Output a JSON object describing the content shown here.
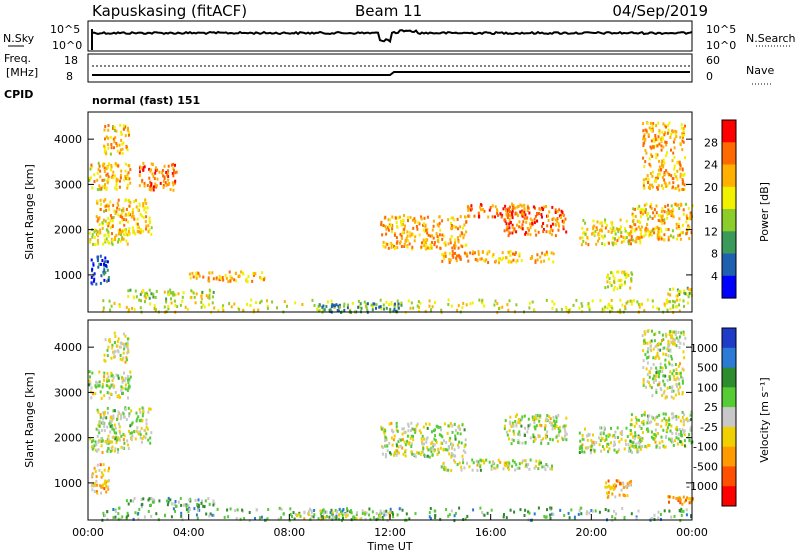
{
  "header": {
    "station": "Kapuskasing (fitACF)",
    "beam": "Beam 11",
    "date": "04/Sep/2019"
  },
  "noise_panel": {
    "left_label": "N.Sky",
    "right_label": "N.Search",
    "left_ticks": [
      "10^5",
      "10^0"
    ],
    "right_ticks": [
      "10^5",
      "10^0"
    ]
  },
  "freq_panel": {
    "left_label_1": "Freq.",
    "left_label_2": "[MHz]",
    "cpid_label": "CPID",
    "right_label": "Nave",
    "left_ticks": [
      "18",
      "8"
    ],
    "right_ticks": [
      "60",
      "0"
    ]
  },
  "mode_text": "normal (fast) 151",
  "chart_data": [
    {
      "type": "heatmap",
      "parameter": "Power",
      "ylabel": "Slant Range [km]",
      "yticks": [
        1000,
        2000,
        3000,
        4000
      ],
      "ylim": [
        180,
        4600
      ],
      "xlim_hours": [
        0,
        24
      ],
      "colorbar_label": "Power [dB]",
      "colorbar_ticks": [
        "28",
        "24",
        "20",
        "16",
        "12",
        "8",
        "4"
      ],
      "colorscale": [
        "#ff0000",
        "#ff6a00",
        "#ffb000",
        "#f2f200",
        "#8ccd2a",
        "#3a9a5a",
        "#2060b0",
        "#0000ff"
      ],
      "patches": [
        {
          "t0": 0.0,
          "t1": 1.6,
          "r0": 1700,
          "r1": 2050,
          "level": 0.45
        },
        {
          "t0": 0.3,
          "t1": 2.5,
          "r0": 1900,
          "r1": 2700,
          "level": 0.35
        },
        {
          "t0": 0.0,
          "t1": 1.7,
          "r0": 2900,
          "r1": 3500,
          "level": 0.35
        },
        {
          "t0": 0.6,
          "t1": 1.6,
          "r0": 3700,
          "r1": 4350,
          "level": 0.35
        },
        {
          "t0": 2.0,
          "t1": 3.5,
          "r0": 2900,
          "r1": 3500,
          "level": 0.2
        },
        {
          "t0": 0.1,
          "t1": 0.8,
          "r0": 800,
          "r1": 1450,
          "level": 0.85
        },
        {
          "t0": 1.5,
          "t1": 5.0,
          "r0": 500,
          "r1": 700,
          "level": 0.5
        },
        {
          "t0": 4.0,
          "t1": 7.0,
          "r0": 880,
          "r1": 1100,
          "level": 0.3
        },
        {
          "t0": 0.5,
          "t1": 24.0,
          "r0": 200,
          "r1": 480,
          "level": 0.45
        },
        {
          "t0": 9.0,
          "t1": 12.5,
          "r0": 200,
          "r1": 400,
          "level": 0.7
        },
        {
          "t0": 11.6,
          "t1": 15.0,
          "r0": 1600,
          "r1": 2350,
          "level": 0.3
        },
        {
          "t0": 14.0,
          "t1": 18.5,
          "r0": 1300,
          "r1": 1550,
          "level": 0.3
        },
        {
          "t0": 15.0,
          "t1": 17.5,
          "r0": 2300,
          "r1": 2600,
          "level": 0.2
        },
        {
          "t0": 16.5,
          "t1": 19.0,
          "r0": 1900,
          "r1": 2550,
          "level": 0.2
        },
        {
          "t0": 19.5,
          "t1": 22.0,
          "r0": 1700,
          "r1": 2250,
          "level": 0.4
        },
        {
          "t0": 21.5,
          "t1": 24.0,
          "r0": 1800,
          "r1": 2600,
          "level": 0.35
        },
        {
          "t0": 20.5,
          "t1": 21.6,
          "r0": 700,
          "r1": 1100,
          "level": 0.45
        },
        {
          "t0": 22.0,
          "t1": 23.7,
          "r0": 2900,
          "r1": 4400,
          "level": 0.3
        },
        {
          "t0": 23.0,
          "t1": 24.0,
          "r0": 550,
          "r1": 750,
          "level": 0.5
        }
      ]
    },
    {
      "type": "heatmap",
      "parameter": "Velocity",
      "ylabel": "Slant Range [km]",
      "yticks": [
        1000,
        2000,
        3000,
        4000
      ],
      "ylim": [
        180,
        4600
      ],
      "xlim_hours": [
        0,
        24
      ],
      "xticks": [
        "00:00",
        "04:00",
        "08:00",
        "12:00",
        "16:00",
        "20:00",
        "00:00"
      ],
      "xlabel": "Time UT",
      "colorbar_label": "Velocity [m s⁻¹]",
      "colorbar_ticks": [
        "1000",
        "500",
        "100",
        "25",
        "-25",
        "-100",
        "-500",
        "-1000"
      ],
      "colorscale": [
        "#1e3cc8",
        "#2a7ad6",
        "#2e8b2e",
        "#55cc33",
        "#c8c8c8",
        "#f0d000",
        "#ff9a00",
        "#ff5000",
        "#ff0000"
      ],
      "patches": [
        {
          "t0": 0.0,
          "t1": 1.6,
          "r0": 1700,
          "r1": 2050,
          "level": 0.5
        },
        {
          "t0": 0.3,
          "t1": 2.5,
          "r0": 1900,
          "r1": 2700,
          "level": 0.5
        },
        {
          "t0": 0.0,
          "t1": 1.7,
          "r0": 2900,
          "r1": 3500,
          "level": 0.5
        },
        {
          "t0": 0.6,
          "t1": 1.6,
          "r0": 3700,
          "r1": 4350,
          "level": 0.55
        },
        {
          "t0": 0.1,
          "t1": 0.8,
          "r0": 800,
          "r1": 1450,
          "level": 0.65
        },
        {
          "t0": 1.5,
          "t1": 5.0,
          "r0": 500,
          "r1": 700,
          "level": 0.35
        },
        {
          "t0": 0.5,
          "t1": 24.0,
          "r0": 200,
          "r1": 480,
          "level": 0.35
        },
        {
          "t0": 8.0,
          "t1": 12.0,
          "r0": 220,
          "r1": 420,
          "level": 0.5
        },
        {
          "t0": 11.6,
          "t1": 15.0,
          "r0": 1600,
          "r1": 2350,
          "level": 0.5
        },
        {
          "t0": 14.0,
          "t1": 18.5,
          "r0": 1300,
          "r1": 1550,
          "level": 0.5
        },
        {
          "t0": 16.5,
          "t1": 19.0,
          "r0": 1900,
          "r1": 2550,
          "level": 0.5
        },
        {
          "t0": 19.5,
          "t1": 22.0,
          "r0": 1700,
          "r1": 2250,
          "level": 0.5
        },
        {
          "t0": 21.5,
          "t1": 24.0,
          "r0": 1800,
          "r1": 2600,
          "level": 0.5
        },
        {
          "t0": 20.5,
          "t1": 21.6,
          "r0": 700,
          "r1": 1100,
          "level": 0.65
        },
        {
          "t0": 22.0,
          "t1": 23.7,
          "r0": 2900,
          "r1": 4400,
          "level": 0.5
        },
        {
          "t0": 23.0,
          "t1": 24.0,
          "r0": 550,
          "r1": 750,
          "level": 0.7
        }
      ]
    }
  ]
}
